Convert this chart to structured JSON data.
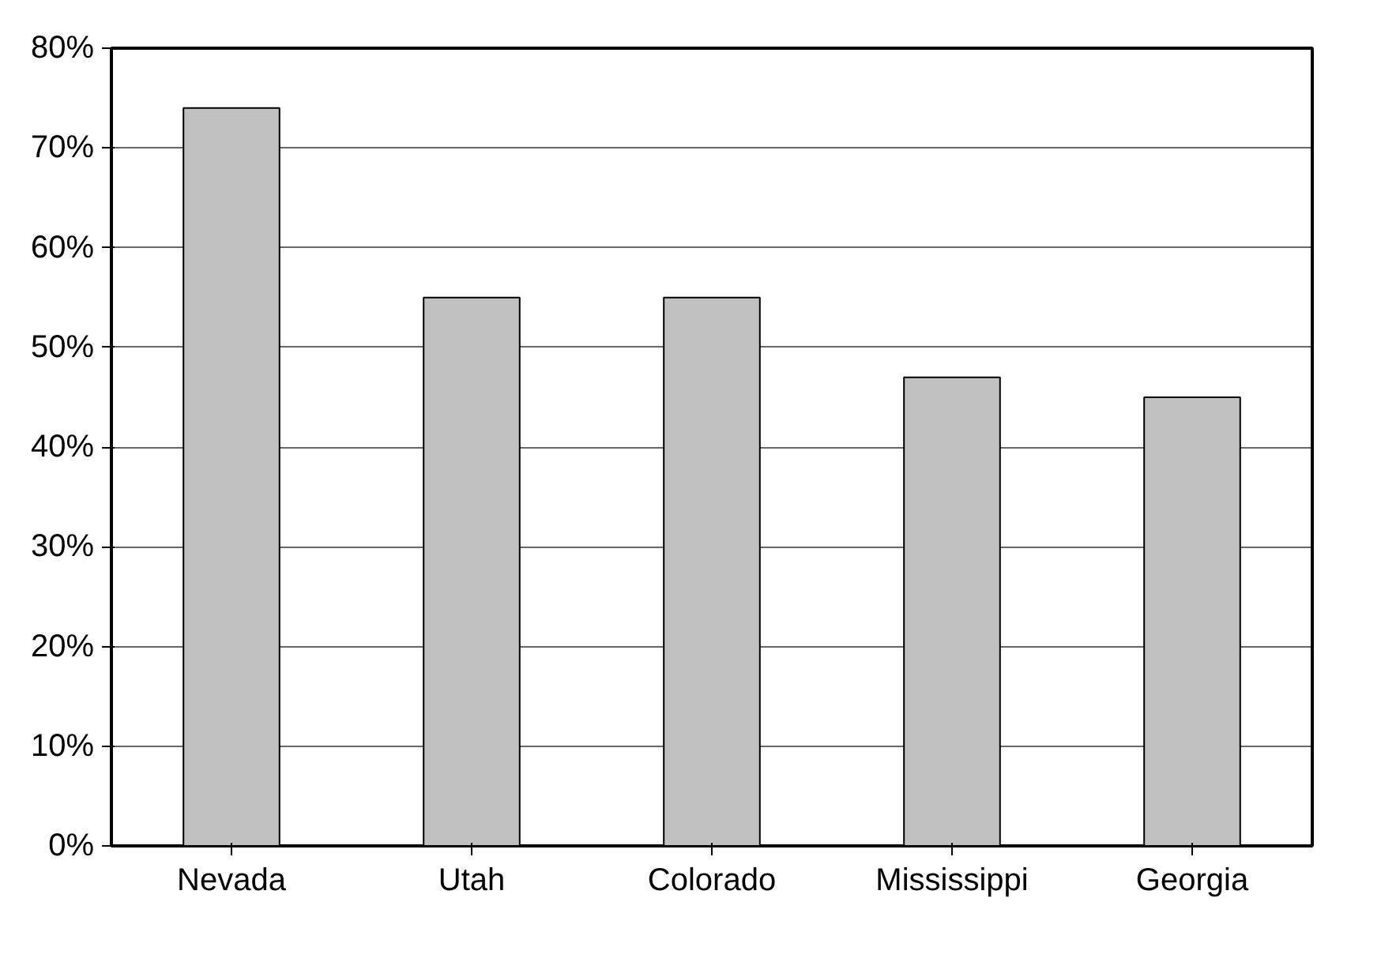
{
  "chart_data": {
    "type": "bar",
    "categories": [
      "Nevada",
      "Utah",
      "Colorado",
      "Mississippi",
      "Georgia"
    ],
    "values": [
      74,
      55,
      55,
      47,
      45
    ],
    "color": "#c0c0c0",
    "ylim": [
      0,
      80
    ],
    "yticks": [
      {
        "value": 0,
        "label": "0%"
      },
      {
        "value": 10,
        "label": "10%"
      },
      {
        "value": 20,
        "label": "20%"
      },
      {
        "value": 30,
        "label": "30%"
      },
      {
        "value": 40,
        "label": "40%"
      },
      {
        "value": 50,
        "label": "50%"
      },
      {
        "value": 60,
        "label": "60%"
      },
      {
        "value": 70,
        "label": "70%"
      },
      {
        "value": 80,
        "label": "80%"
      }
    ],
    "grid": "y"
  }
}
